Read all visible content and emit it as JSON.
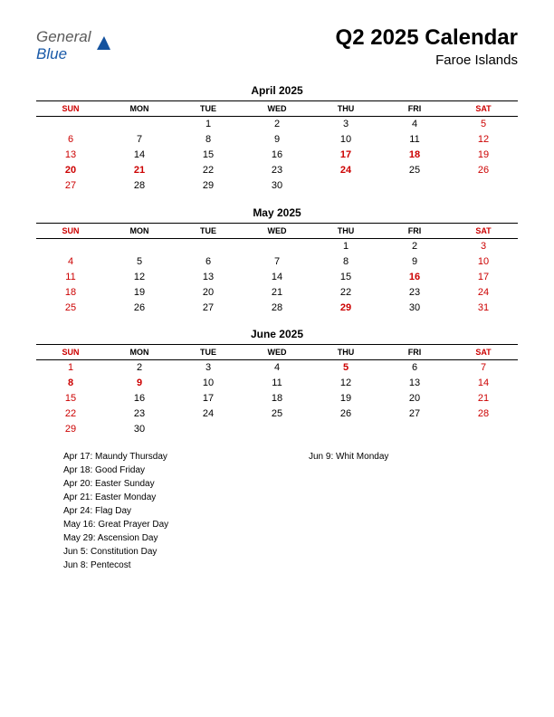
{
  "logo": {
    "general": "General",
    "blue": "Blue"
  },
  "title": "Q2 2025 Calendar",
  "subtitle": "Faroe Islands",
  "colors": {
    "red": "#cc0000",
    "text": "#000000",
    "logo_gray": "#5a5a5a",
    "logo_blue": "#1a5aa8",
    "logo_triangle": "#14529e",
    "background": "#ffffff"
  },
  "day_headers": [
    "SUN",
    "MON",
    "TUE",
    "WED",
    "THU",
    "FRI",
    "SAT"
  ],
  "months": [
    {
      "title": "April 2025",
      "weeks": [
        [
          {
            "d": ""
          },
          {
            "d": ""
          },
          {
            "d": "1"
          },
          {
            "d": "2"
          },
          {
            "d": "3"
          },
          {
            "d": "4"
          },
          {
            "d": "5",
            "r": true
          }
        ],
        [
          {
            "d": "6",
            "r": true
          },
          {
            "d": "7"
          },
          {
            "d": "8"
          },
          {
            "d": "9"
          },
          {
            "d": "10"
          },
          {
            "d": "11"
          },
          {
            "d": "12",
            "r": true
          }
        ],
        [
          {
            "d": "13",
            "r": true
          },
          {
            "d": "14"
          },
          {
            "d": "15"
          },
          {
            "d": "16"
          },
          {
            "d": "17",
            "r": true,
            "b": true
          },
          {
            "d": "18",
            "r": true,
            "b": true
          },
          {
            "d": "19",
            "r": true
          }
        ],
        [
          {
            "d": "20",
            "r": true,
            "b": true
          },
          {
            "d": "21",
            "r": true,
            "b": true
          },
          {
            "d": "22"
          },
          {
            "d": "23"
          },
          {
            "d": "24",
            "r": true,
            "b": true
          },
          {
            "d": "25"
          },
          {
            "d": "26",
            "r": true
          }
        ],
        [
          {
            "d": "27",
            "r": true
          },
          {
            "d": "28"
          },
          {
            "d": "29"
          },
          {
            "d": "30"
          },
          {
            "d": ""
          },
          {
            "d": ""
          },
          {
            "d": ""
          }
        ]
      ]
    },
    {
      "title": "May 2025",
      "weeks": [
        [
          {
            "d": ""
          },
          {
            "d": ""
          },
          {
            "d": ""
          },
          {
            "d": ""
          },
          {
            "d": "1"
          },
          {
            "d": "2"
          },
          {
            "d": "3",
            "r": true
          }
        ],
        [
          {
            "d": "4",
            "r": true
          },
          {
            "d": "5"
          },
          {
            "d": "6"
          },
          {
            "d": "7"
          },
          {
            "d": "8"
          },
          {
            "d": "9"
          },
          {
            "d": "10",
            "r": true
          }
        ],
        [
          {
            "d": "11",
            "r": true
          },
          {
            "d": "12"
          },
          {
            "d": "13"
          },
          {
            "d": "14"
          },
          {
            "d": "15"
          },
          {
            "d": "16",
            "r": true,
            "b": true
          },
          {
            "d": "17",
            "r": true
          }
        ],
        [
          {
            "d": "18",
            "r": true
          },
          {
            "d": "19"
          },
          {
            "d": "20"
          },
          {
            "d": "21"
          },
          {
            "d": "22"
          },
          {
            "d": "23"
          },
          {
            "d": "24",
            "r": true
          }
        ],
        [
          {
            "d": "25",
            "r": true
          },
          {
            "d": "26"
          },
          {
            "d": "27"
          },
          {
            "d": "28"
          },
          {
            "d": "29",
            "r": true,
            "b": true
          },
          {
            "d": "30"
          },
          {
            "d": "31",
            "r": true
          }
        ]
      ]
    },
    {
      "title": "June 2025",
      "weeks": [
        [
          {
            "d": "1",
            "r": true
          },
          {
            "d": "2"
          },
          {
            "d": "3"
          },
          {
            "d": "4"
          },
          {
            "d": "5",
            "r": true,
            "b": true
          },
          {
            "d": "6"
          },
          {
            "d": "7",
            "r": true
          }
        ],
        [
          {
            "d": "8",
            "r": true,
            "b": true
          },
          {
            "d": "9",
            "r": true,
            "b": true
          },
          {
            "d": "10"
          },
          {
            "d": "11"
          },
          {
            "d": "12"
          },
          {
            "d": "13"
          },
          {
            "d": "14",
            "r": true
          }
        ],
        [
          {
            "d": "15",
            "r": true
          },
          {
            "d": "16"
          },
          {
            "d": "17"
          },
          {
            "d": "18"
          },
          {
            "d": "19"
          },
          {
            "d": "20"
          },
          {
            "d": "21",
            "r": true
          }
        ],
        [
          {
            "d": "22",
            "r": true
          },
          {
            "d": "23"
          },
          {
            "d": "24"
          },
          {
            "d": "25"
          },
          {
            "d": "26"
          },
          {
            "d": "27"
          },
          {
            "d": "28",
            "r": true
          }
        ],
        [
          {
            "d": "29",
            "r": true
          },
          {
            "d": "30"
          },
          {
            "d": ""
          },
          {
            "d": ""
          },
          {
            "d": ""
          },
          {
            "d": ""
          },
          {
            "d": ""
          }
        ]
      ]
    }
  ],
  "holidays_left": [
    "Apr 17: Maundy Thursday",
    "Apr 18: Good Friday",
    "Apr 20: Easter Sunday",
    "Apr 21: Easter Monday",
    "Apr 24: Flag Day",
    "May 16: Great Prayer Day",
    "May 29: Ascension Day",
    "Jun 5: Constitution Day",
    "Jun 8: Pentecost"
  ],
  "holidays_right": [
    "Jun 9: Whit Monday"
  ]
}
